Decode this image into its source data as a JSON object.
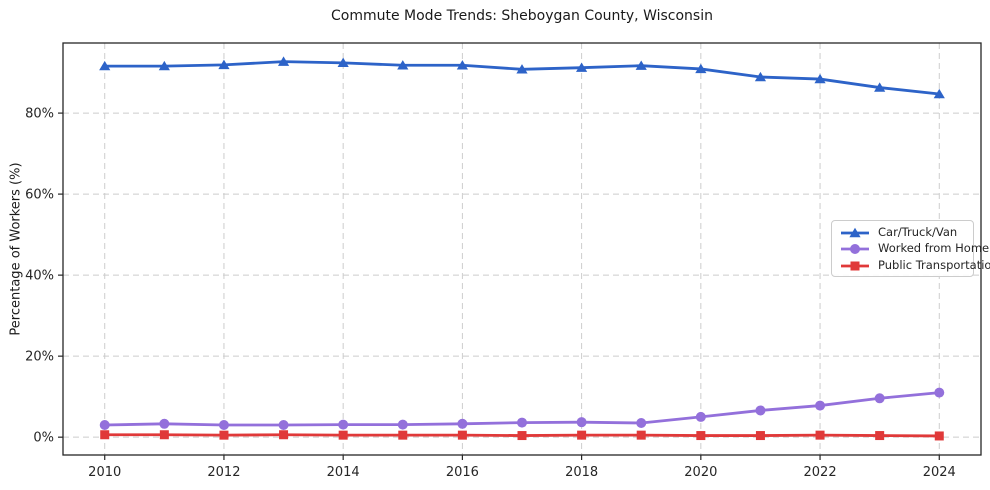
{
  "chart_data": {
    "type": "line",
    "title": "Commute Mode Trends: Sheboygan County, Wisconsin",
    "xlabel": "",
    "ylabel": "Percentage of Workers (%)",
    "x": [
      2010,
      2011,
      2012,
      2013,
      2014,
      2015,
      2016,
      2017,
      2018,
      2019,
      2020,
      2021,
      2022,
      2023,
      2024
    ],
    "series": [
      {
        "name": "Car/Truck/Van",
        "color": "#2d63c8",
        "marker": "triangle",
        "values": [
          91.6,
          91.6,
          91.9,
          92.7,
          92.4,
          91.8,
          91.8,
          90.8,
          91.2,
          91.7,
          90.9,
          88.9,
          88.4,
          86.3,
          84.7
        ]
      },
      {
        "name": "Worked from Home",
        "color": "#9370db",
        "marker": "circle",
        "values": [
          3.0,
          3.3,
          3.0,
          3.0,
          3.1,
          3.1,
          3.3,
          3.6,
          3.7,
          3.5,
          5.0,
          6.6,
          7.8,
          9.6,
          11.0
        ]
      },
      {
        "name": "Public Transportation",
        "color": "#e03939",
        "marker": "square",
        "values": [
          0.6,
          0.6,
          0.5,
          0.6,
          0.5,
          0.5,
          0.5,
          0.4,
          0.5,
          0.5,
          0.4,
          0.4,
          0.5,
          0.4,
          0.3
        ]
      }
    ],
    "xlim": [
      2009.3,
      2024.7
    ],
    "ylim": [
      -4.4,
      97.3
    ],
    "xticks": {
      "values": [
        2010,
        2012,
        2014,
        2016,
        2018,
        2020,
        2022,
        2024
      ],
      "labels": [
        "2010",
        "2012",
        "2014",
        "2016",
        "2018",
        "2020",
        "2022",
        "2024"
      ]
    },
    "yticks": {
      "values": [
        0,
        20,
        40,
        60,
        80
      ],
      "labels": [
        "0%",
        "20%",
        "40%",
        "60%",
        "80%"
      ]
    },
    "grid": true,
    "grid_color": "#cccccc",
    "frame_color": "#262626",
    "legend_position": "center right"
  }
}
